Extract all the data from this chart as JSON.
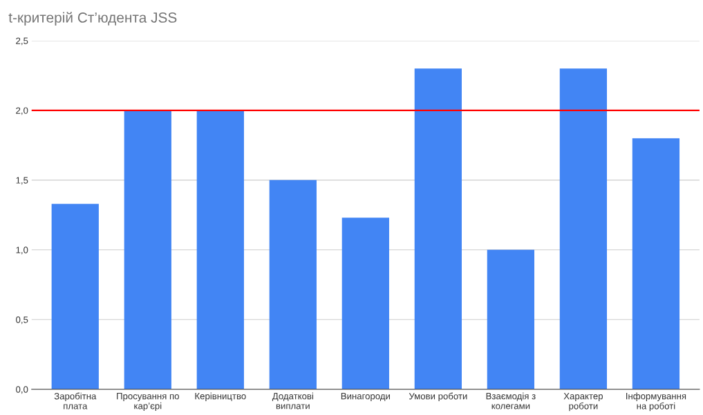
{
  "chart_data": {
    "type": "bar",
    "title": "t-критерій Ст’юдента JSS",
    "categories": [
      "Заробітна\nплата",
      "Просування по\nкар’єрі",
      "Керівництво",
      "Додаткові\nвиплати",
      "Винагороди",
      "Умови роботи",
      "Взаємодія з\nколегами",
      "Характер\nроботи",
      "Інформування\nна роботі"
    ],
    "values": [
      1.33,
      2.0,
      2.0,
      1.5,
      1.23,
      2.3,
      1.0,
      2.3,
      1.8
    ],
    "color": "#4285f4",
    "ylim": [
      0,
      2.5
    ],
    "yticks": [
      {
        "value": 0,
        "label": "0,0"
      },
      {
        "value": 0.5,
        "label": "0,5"
      },
      {
        "value": 1.0,
        "label": "1,0"
      },
      {
        "value": 1.5,
        "label": "1,5"
      },
      {
        "value": 2.0,
        "label": "2,0"
      },
      {
        "value": 2.5,
        "label": "2,5"
      }
    ],
    "grid": "y",
    "ref_lines": [
      {
        "axis": "y",
        "value": 2.0,
        "color": "#ff0000"
      }
    ]
  }
}
